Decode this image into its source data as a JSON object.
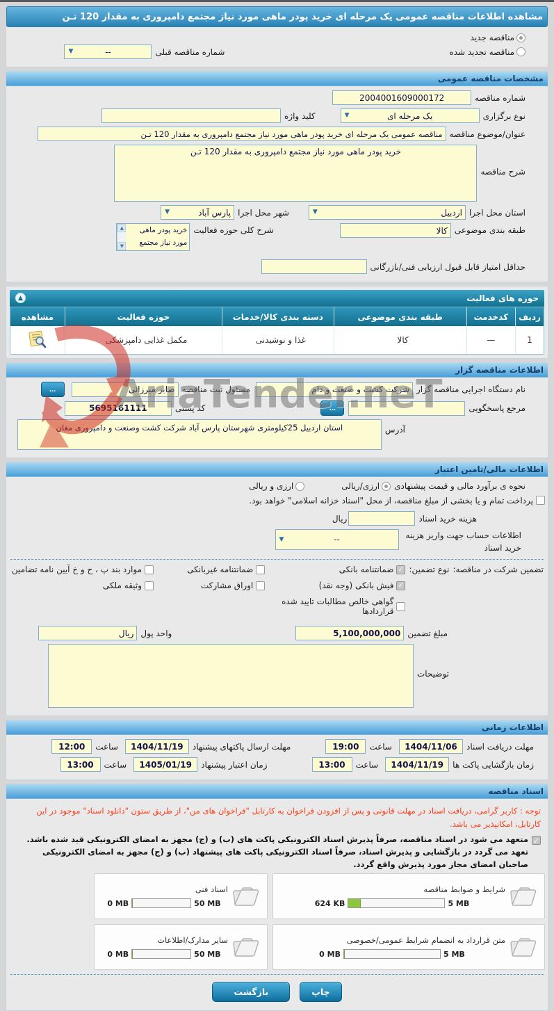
{
  "page": {
    "title": "مشاهده اطلاعات مناقصه عمومی یک مرحله ای خرید پودر ماهی مورد نیاز مجتمع دامپروری به مقدار 120 تـن"
  },
  "top": {
    "radio_new": "مناقصه جدید",
    "radio_renewed": "مناقصه تجدید شده",
    "prev_number_label": "شماره مناقصه قبلی",
    "prev_number_value": "--"
  },
  "specs": {
    "header": "مشخصات مناقصه عمومی",
    "tender_no_label": "شماره مناقصه",
    "tender_no": "2004001609000172",
    "type_label": "نوع برگزاری",
    "type_value": "یک مرحله ای",
    "keyword_label": "کلید واژه",
    "keyword_value": "",
    "subject_label": "عنوان/موضوع مناقصه",
    "subject_value": "مناقصه عمومی یک مرحله ای خرید پودر ماهی مورد نیاز مجتمع دامپروری به مقدار 120 تـن",
    "desc_label": "شرح مناقصه",
    "desc_value": "خرید پودر ماهی مورد نیاز مجتمع دامپروری به مقدار 120 تـن",
    "province_label": "استان محل اجرا",
    "province_value": "اردبیل",
    "city_label": "شهر محل اجرا",
    "city_value": "پارس آباد",
    "category_label": "طبقه بندی موضوعی",
    "category_value": "کالا",
    "scope_label": "شرح کلی حوزه فعالیت",
    "scope_value": "خرید پودر ماهی مورد نیاز مجتمع دامپروری  به مقدار",
    "min_score_label": "حداقل امتیاز قابل قبول ارزیابی فنی/بازرگانی",
    "min_score_value": ""
  },
  "activity": {
    "header": "حوزه های فعالیت",
    "columns": {
      "c0": "ردیف",
      "c1": "کدخدمت",
      "c2": "طبقه بندی موضوعی",
      "c3": "دسته بندی کالا/خدمات",
      "c4": "حوزه فعالیت",
      "c5": "مشاهده"
    },
    "rows": [
      {
        "index": "1",
        "service_code": "—",
        "category": "کالا",
        "goods_class": "غذا و نوشیدنی",
        "field": "مکمل غذایی دامپزشکی"
      }
    ]
  },
  "agency": {
    "header": "اطلاعات مناقصه گزار",
    "org_label": "نام دستگاه اجرایی مناقصه گزار",
    "org_value": "شرکت کشت و صنعت و دام",
    "registrar_label": "مسئول ثبت مناقصه",
    "registrar_value": "صابر میرزائی",
    "more_button": "...",
    "contact_label": "مرجع پاسخگویی",
    "contact_value": "",
    "postal_label": "کد پستی",
    "postal_value": "5695161111",
    "address_label": "آدرس",
    "address_value": "استان اردبیل 25کیلومتری شهرستان پارس آباد شرکت کشت وصنعت و دامپروری مغان"
  },
  "financial": {
    "header": "اطلاعات مالی/تامین اعتبار",
    "estimate_label": "نحوه ی برآورد مالی و قیمت پیشنهادی",
    "radio_rial": "ارزی/ریالی",
    "radio_both": "ارزی و ریالی",
    "treasury_note": "پرداخت تمام و یا بخشی از مبلغ مناقصه، از محل \"اسناد خزانه اسلامی\" خواهد بود.",
    "doc_fee_label": "هزینه خرید اسناد",
    "doc_fee_unit": "ریال",
    "doc_fee_value": "",
    "account_label_1": "اطلاعات حساب جهت واریز هزینه",
    "account_label_2": "خرید اسناد",
    "account_value": "--",
    "guarantee_label": "تضمین شرکت در مناقصه:",
    "guarantee_type_label": "نوع تضمین:",
    "options": [
      {
        "label": "ضمانتنامه بانکی",
        "checked": true
      },
      {
        "label": "ضمانتنامه غیربانکی",
        "checked": false
      },
      {
        "label": "موارد بند پ ، ح و خ آیین نامه تضامین",
        "checked": false
      },
      {
        "label": "فیش بانکی (وجه نقد)",
        "checked": true
      },
      {
        "label": "اوراق مشارکت",
        "checked": false
      },
      {
        "label": "وثیقه ملکی",
        "checked": false
      },
      {
        "label": "گواهی خالص مطالبات تایید شده قراردادها",
        "checked": false
      }
    ],
    "amount_label": "مبلغ تضمین",
    "amount_value": "5,100,000,000",
    "currency_label": "واحد پول",
    "currency_value": "ریال",
    "notes_label": "توضیحات",
    "notes_value": ""
  },
  "schedule": {
    "header": "اطلاعات زمانی",
    "hour_label": "ساعت",
    "items": [
      {
        "label": "مهلت دریافت اسناد",
        "date": "1404/11/06",
        "time": "19:00"
      },
      {
        "label": "مهلت ارسال پاکتهای پیشنهاد",
        "date": "1404/11/19",
        "time": "12:00"
      },
      {
        "label": "زمان بازگشایی پاکت ها",
        "date": "1404/11/19",
        "time": "13:00"
      },
      {
        "label": "زمان اعتبار پیشنهاد",
        "date": "1405/01/19",
        "time": "13:00"
      }
    ]
  },
  "documents": {
    "header": "اسناد مناقصه",
    "notice": "توجه : کاربر گرامی، دریافت اسناد در مهلت قانونی و پس از افزودن فراخوان به کارتابل \"فراخوان های من\"، از طریق ستون \"دانلود اسناد\" موجود در این کارتابل، امکانپذیر می باشد.",
    "commitment": "متعهد می شود در اسناد مناقصه، صرفاً پذیرش اسناد الکترونیکی پاکت های (ب) و (ج) مجهز به امضای الکترونیکی قید شده باشد. تعهد می گردد در بازگشایی و پذیرش اسناد، صرفاً اسناد الکترونیکی پاکت های پیشنهاد (ب) و (ج) مجهز به امضای الکترونیکی صاحبان امضای مجاز مورد پذیرش واقع گردد.",
    "files": [
      {
        "label": "شرایط و ضوابط مناقصه",
        "current": "624 KB",
        "max": "5 MB",
        "pct": 13
      },
      {
        "label": "اسناد فنی",
        "current": "0 MB",
        "max": "50 MB",
        "pct": 0
      },
      {
        "label": "متن قرارداد به انضمام شرایط عمومی/خصوصی",
        "current": "0 MB",
        "max": "5 MB",
        "pct": 0
      },
      {
        "label": "سایر مدارک/اطلاعات",
        "current": "0 MB",
        "max": "50 MB",
        "pct": 0
      }
    ]
  },
  "footer": {
    "print": "چاپ",
    "back": "بازگشت"
  },
  "watermark": {
    "text": "AriaTender.neT"
  },
  "colors": {
    "accent_blue": "#2a82b4",
    "teal": "#10708f",
    "input_bg": "#fdfbd2",
    "progress_green": "#8cc63f",
    "notice_red": "#fe3b17"
  }
}
